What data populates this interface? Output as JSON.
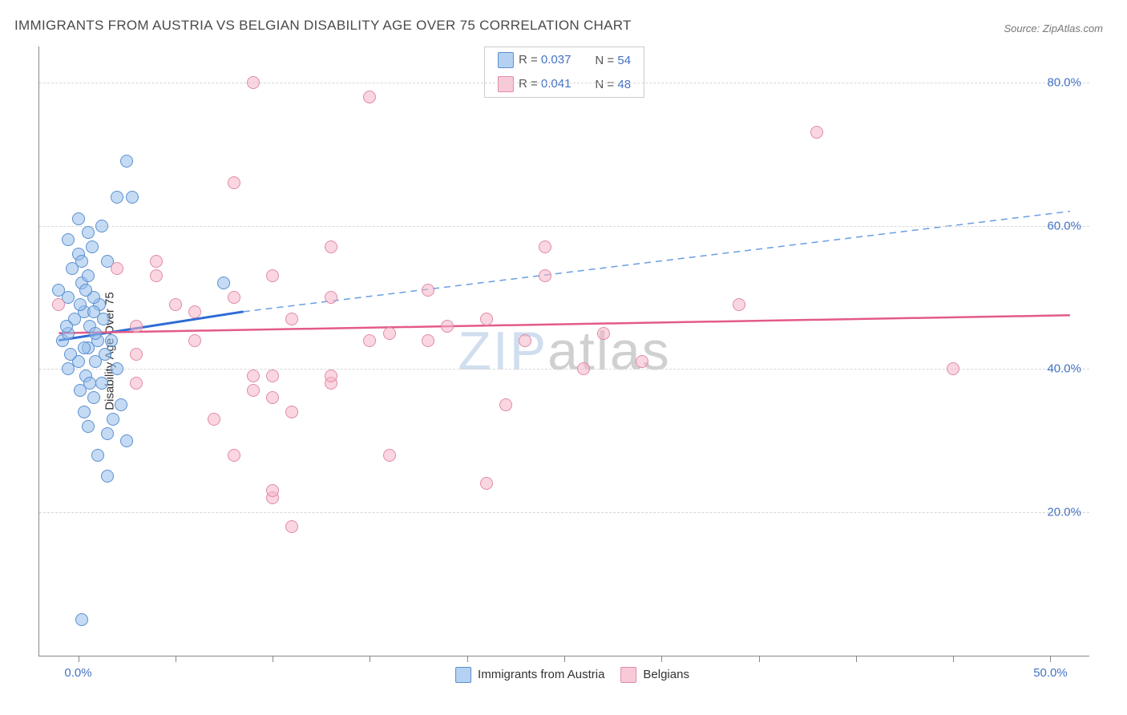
{
  "title": "IMMIGRANTS FROM AUSTRIA VS BELGIAN DISABILITY AGE OVER 75 CORRELATION CHART",
  "source": "Source: ZipAtlas.com",
  "ylabel": "Disability Age Over 75",
  "watermark": {
    "zip": "ZIP",
    "atlas": "atlas"
  },
  "chart": {
    "type": "scatter",
    "x_range": [
      -2,
      52
    ],
    "y_range": [
      0,
      85
    ],
    "background_color": "#ffffff",
    "grid_color": "#d8d8d8",
    "axis_color": "#888888",
    "y_ticks": [
      20,
      40,
      60,
      80
    ],
    "y_tick_labels": [
      "20.0%",
      "40.0%",
      "60.0%",
      "80.0%"
    ],
    "x_ticks": [
      0,
      5,
      10,
      15,
      20,
      25,
      30,
      35,
      40,
      45,
      50
    ],
    "x_tick_labels": {
      "0": "0.0%",
      "50": "50.0%"
    },
    "y_tick_color": "#4472c4",
    "x_tick_color": "#4472c4",
    "marker_size": 16,
    "series": [
      {
        "name": "Immigrants from Austria",
        "color_fill": "rgba(150,190,235,0.55)",
        "color_border": "#5a8fd0",
        "R": "0.037",
        "N": "54",
        "trend": {
          "solid": {
            "x1": -1,
            "y1": 44,
            "x2": 8.5,
            "y2": 48,
            "color": "#2e6bd6",
            "width": 3
          },
          "dashed": {
            "x1": 8.5,
            "y1": 48,
            "x2": 51,
            "y2": 62,
            "color": "#6a9fe0",
            "width": 1.5
          }
        },
        "points": [
          [
            0.2,
            5
          ],
          [
            1.5,
            25
          ],
          [
            1.0,
            28
          ],
          [
            2.5,
            30
          ],
          [
            1.5,
            31
          ],
          [
            0.5,
            32
          ],
          [
            1.8,
            33
          ],
          [
            0.3,
            34
          ],
          [
            2.2,
            35
          ],
          [
            0.8,
            36
          ],
          [
            0.1,
            37
          ],
          [
            1.2,
            38
          ],
          [
            0.4,
            39
          ],
          [
            -0.5,
            40
          ],
          [
            2.0,
            40
          ],
          [
            0.0,
            41
          ],
          [
            1.4,
            42
          ],
          [
            0.5,
            43
          ],
          [
            -0.8,
            44
          ],
          [
            1.0,
            44
          ],
          [
            -0.5,
            45
          ],
          [
            0.6,
            46
          ],
          [
            -0.2,
            47
          ],
          [
            0.3,
            48
          ],
          [
            1.1,
            49
          ],
          [
            -0.5,
            50
          ],
          [
            0.8,
            50
          ],
          [
            -1.0,
            51
          ],
          [
            0.2,
            52
          ],
          [
            7.5,
            52
          ],
          [
            0.5,
            53
          ],
          [
            -0.3,
            54
          ],
          [
            1.5,
            55
          ],
          [
            0.0,
            56
          ],
          [
            0.7,
            57
          ],
          [
            -0.5,
            58
          ],
          [
            0.5,
            59
          ],
          [
            1.2,
            60
          ],
          [
            0.0,
            61
          ],
          [
            2.0,
            64
          ],
          [
            2.8,
            64
          ],
          [
            2.5,
            69
          ],
          [
            0.3,
            43
          ],
          [
            0.9,
            45
          ],
          [
            -0.4,
            42
          ],
          [
            0.6,
            38
          ],
          [
            1.3,
            47
          ],
          [
            0.1,
            49
          ],
          [
            -0.6,
            46
          ],
          [
            0.4,
            51
          ],
          [
            0.9,
            41
          ],
          [
            1.7,
            44
          ],
          [
            0.2,
            55
          ],
          [
            0.8,
            48
          ]
        ]
      },
      {
        "name": "Belgians",
        "color_fill": "rgba(245,180,200,0.55)",
        "color_border": "#e08ba5",
        "R": "0.041",
        "N": "48",
        "trend": {
          "solid": {
            "x1": -1,
            "y1": 45,
            "x2": 51,
            "y2": 47.5,
            "color": "#e35b88",
            "width": 2.5
          }
        },
        "points": [
          [
            11,
            18
          ],
          [
            10,
            22
          ],
          [
            10,
            23
          ],
          [
            21,
            24
          ],
          [
            8,
            28
          ],
          [
            16,
            28
          ],
          [
            7,
            33
          ],
          [
            11,
            34
          ],
          [
            22,
            35
          ],
          [
            10,
            36
          ],
          [
            9,
            37
          ],
          [
            3,
            38
          ],
          [
            13,
            38
          ],
          [
            9,
            39
          ],
          [
            10,
            39
          ],
          [
            13,
            39
          ],
          [
            26,
            40
          ],
          [
            3,
            42
          ],
          [
            45,
            40
          ],
          [
            15,
            44
          ],
          [
            18,
            44
          ],
          [
            23,
            44
          ],
          [
            6,
            48
          ],
          [
            -1,
            49
          ],
          [
            8,
            50
          ],
          [
            13,
            50
          ],
          [
            18,
            51
          ],
          [
            34,
            49
          ],
          [
            4,
            53
          ],
          [
            10,
            53
          ],
          [
            24,
            53
          ],
          [
            2,
            54
          ],
          [
            4,
            55
          ],
          [
            13,
            57
          ],
          [
            24,
            57
          ],
          [
            8,
            66
          ],
          [
            15,
            78
          ],
          [
            9,
            80
          ],
          [
            38,
            73
          ],
          [
            27,
            45
          ],
          [
            29,
            41
          ],
          [
            6,
            44
          ],
          [
            11,
            47
          ],
          [
            19,
            46
          ],
          [
            3,
            46
          ],
          [
            5,
            49
          ],
          [
            16,
            45
          ],
          [
            21,
            47
          ]
        ]
      }
    ]
  },
  "legend_top": {
    "rows": [
      {
        "swatch": "blue",
        "r_label": "R =",
        "r_val": "0.037",
        "n_label": "N =",
        "n_val": "54"
      },
      {
        "swatch": "pink",
        "r_label": "R =",
        "r_val": "0.041",
        "n_label": "N =",
        "n_val": "48"
      }
    ]
  },
  "legend_bottom": {
    "items": [
      {
        "swatch": "blue",
        "label": "Immigrants from Austria"
      },
      {
        "swatch": "pink",
        "label": "Belgians"
      }
    ]
  }
}
